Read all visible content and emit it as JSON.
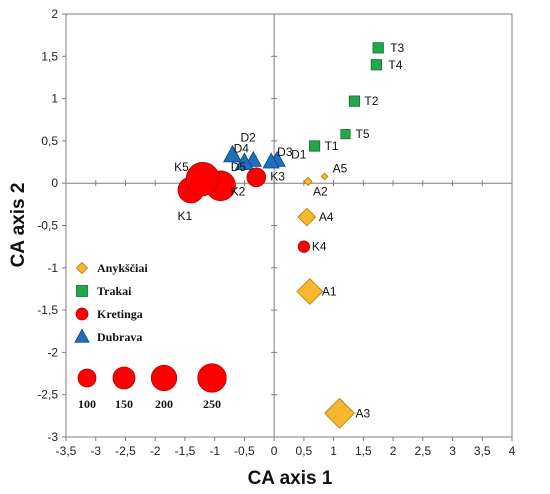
{
  "chart_data": {
    "type": "scatter",
    "xlabel": "CA axis 1",
    "ylabel": "CA axis 2",
    "xlim": [
      -3.5,
      4
    ],
    "ylim": [
      -3,
      2
    ],
    "x_ticks": [
      "-3,5",
      "-3",
      "-2,5",
      "-2",
      "-1,5",
      "-1",
      "-0,5",
      "0",
      "0,5",
      "1",
      "1,5",
      "2",
      "2,5",
      "3",
      "3,5",
      "4"
    ],
    "y_ticks": [
      "2",
      "1,5",
      "1",
      "0,5",
      "0",
      "-0,5",
      "-1",
      "-1,5",
      "-2",
      "-2,5",
      "-3"
    ],
    "grid": false,
    "legend_position": "bottom-left",
    "colors": {
      "Anykščiai": "#f5b82e",
      "Trakai": "#22a84a",
      "Kretinga": "#ff0000",
      "Dubrava": "#1f6fbf"
    },
    "series": [
      {
        "name": "Anykščiai",
        "marker": "diamond",
        "points": [
          {
            "label": "A1",
            "x": 0.6,
            "y": -1.28,
            "size": 150
          },
          {
            "label": "A2",
            "x": 0.57,
            "y": 0.02,
            "size": 15
          },
          {
            "label": "A3",
            "x": 1.1,
            "y": -2.72,
            "size": 200
          },
          {
            "label": "A4",
            "x": 0.55,
            "y": -0.4,
            "size": 70
          },
          {
            "label": "A5",
            "x": 0.85,
            "y": 0.08,
            "size": 10
          }
        ]
      },
      {
        "name": "Trakai",
        "marker": "square",
        "points": [
          {
            "label": "T1",
            "x": 0.68,
            "y": 0.44,
            "size": 50
          },
          {
            "label": "T2",
            "x": 1.35,
            "y": 0.97,
            "size": 50
          },
          {
            "label": "T3",
            "x": 1.75,
            "y": 1.6,
            "size": 50
          },
          {
            "label": "T4",
            "x": 1.72,
            "y": 1.4,
            "size": 50
          },
          {
            "label": "T5",
            "x": 1.2,
            "y": 0.58,
            "size": 40
          }
        ]
      },
      {
        "name": "Kretinga",
        "marker": "circle",
        "points": [
          {
            "label": "K1",
            "x": -1.4,
            "y": -0.08,
            "size": 150
          },
          {
            "label": "K2",
            "x": -0.9,
            "y": -0.03,
            "size": 200
          },
          {
            "label": "K3",
            "x": -0.3,
            "y": 0.07,
            "size": 80
          },
          {
            "label": "K4",
            "x": 0.5,
            "y": -0.75,
            "size": 30
          },
          {
            "label": "K5",
            "x": -1.2,
            "y": 0.05,
            "size": 250
          }
        ]
      },
      {
        "name": "Dubrava",
        "marker": "triangle",
        "points": [
          {
            "label": "D1",
            "x": 0.05,
            "y": 0.27,
            "size": 90
          },
          {
            "label": "D2",
            "x": -0.7,
            "y": 0.33,
            "size": 110
          },
          {
            "label": "D3",
            "x": -0.05,
            "y": 0.25,
            "size": 90
          },
          {
            "label": "D4",
            "x": -0.35,
            "y": 0.27,
            "size": 90
          },
          {
            "label": "D5",
            "x": -0.5,
            "y": 0.24,
            "size": 110
          }
        ]
      }
    ],
    "size_legend": [
      {
        "label": "100",
        "size": 100
      },
      {
        "label": "150",
        "size": 150
      },
      {
        "label": "200",
        "size": 200
      },
      {
        "label": "250",
        "size": 250
      }
    ]
  }
}
